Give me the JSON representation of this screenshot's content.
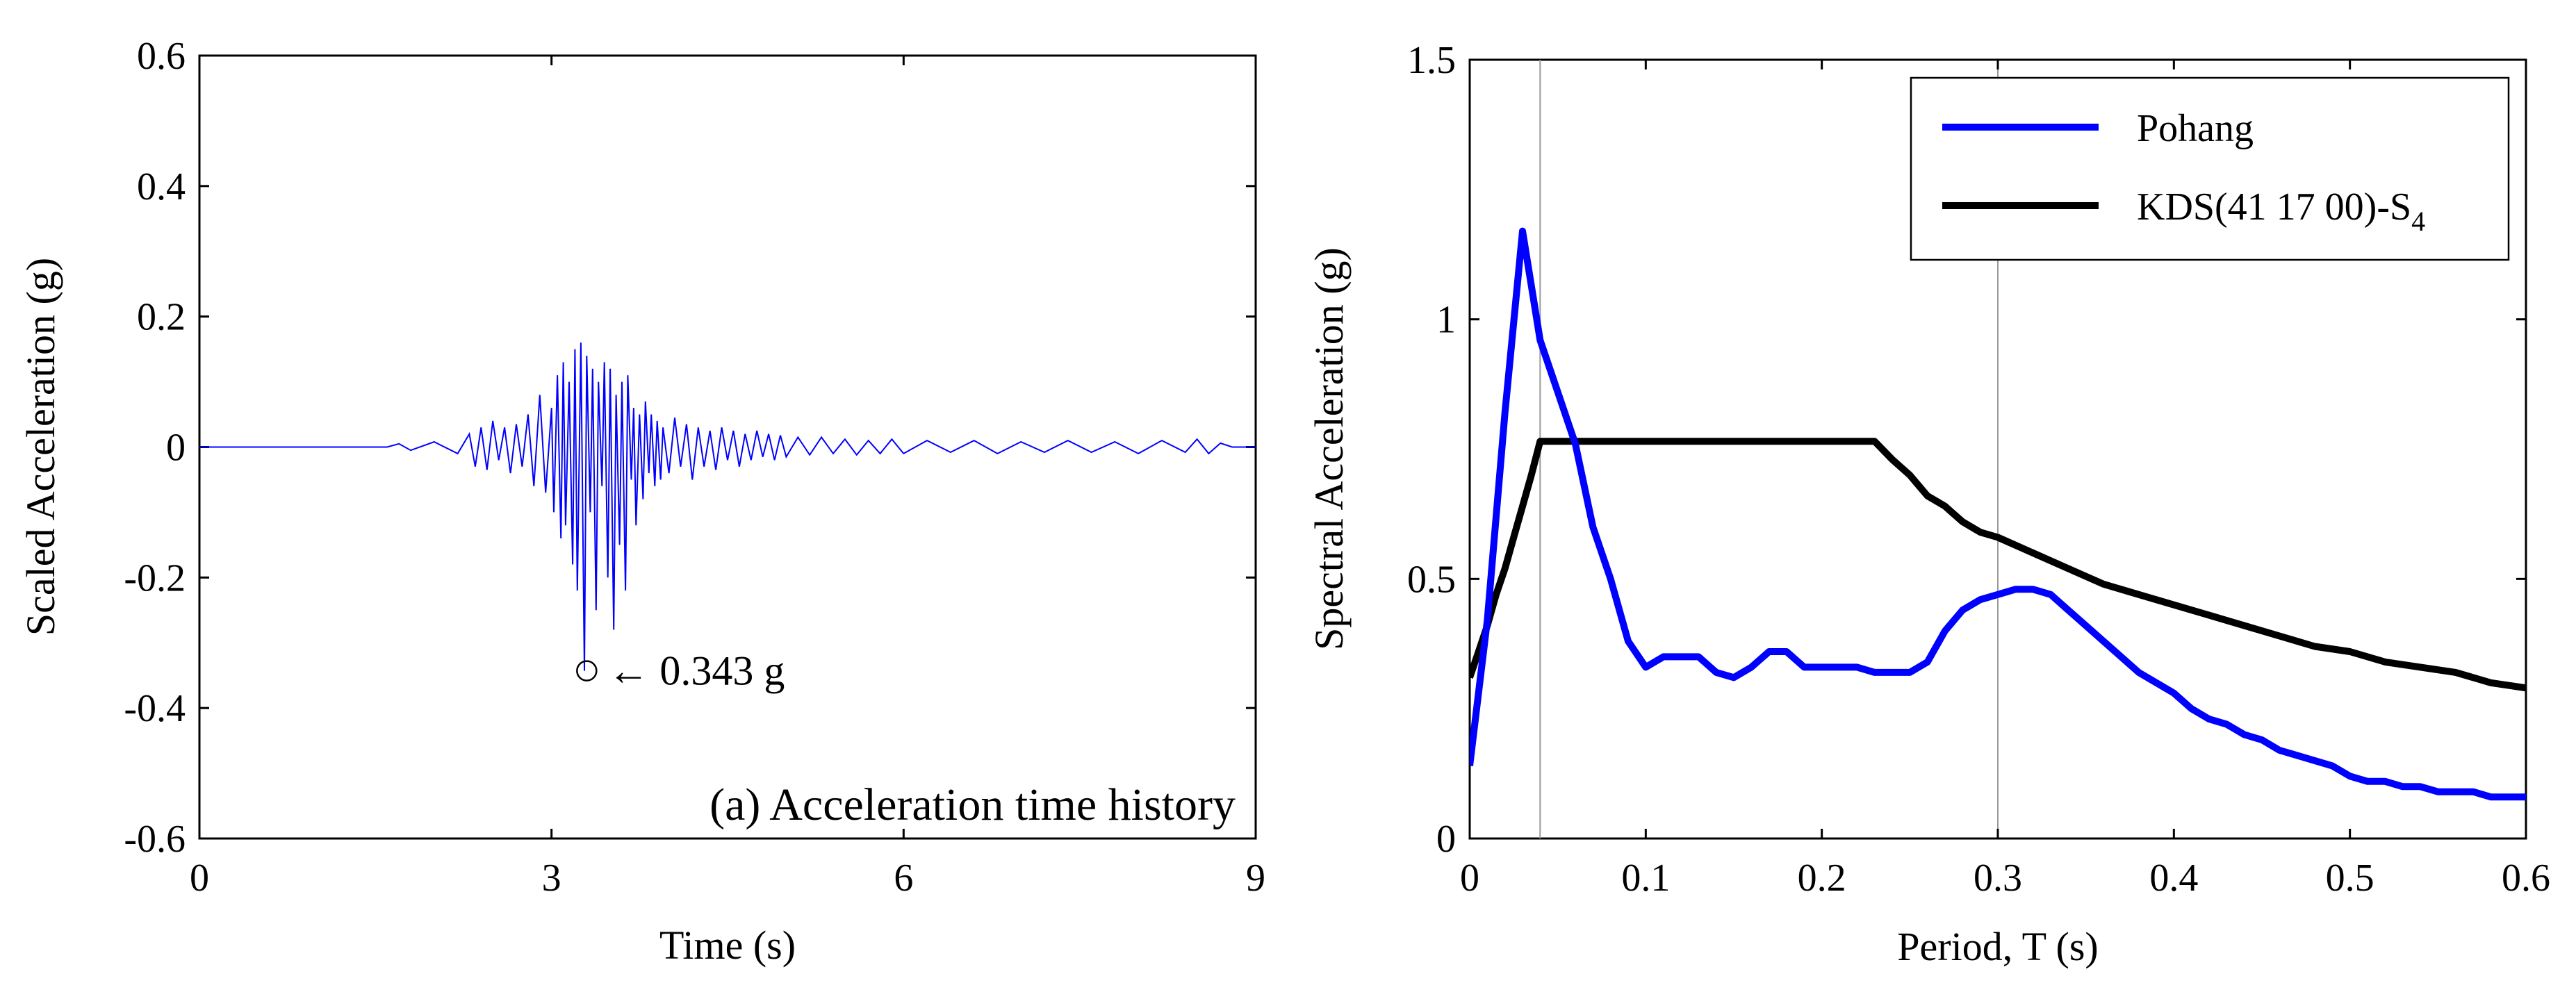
{
  "colors": {
    "pohang": "#0000ff",
    "kds": "#000000",
    "axis": "#000000",
    "ref_line": "#999999"
  },
  "chart_data": [
    {
      "type": "line",
      "title": "",
      "xlabel": "Time (s)",
      "ylabel": "Scaled Acceleration (g)",
      "xlim": [
        0,
        9
      ],
      "ylim": [
        -0.6,
        0.6
      ],
      "xticks": [
        0,
        3,
        6,
        9
      ],
      "xtick_labels": [
        "0",
        "3",
        "6",
        "9"
      ],
      "yticks": [
        -0.6,
        -0.4,
        -0.2,
        0,
        0.2,
        0.4,
        0.6
      ],
      "ytick_labels": [
        "-0.6",
        "-0.4",
        "-0.2",
        "0",
        "0.2",
        "0.4",
        "0.6"
      ],
      "series": [
        {
          "name": "Pohang",
          "x": [
            0,
            1.6,
            1.7,
            1.8,
            2.0,
            2.2,
            2.3,
            2.35,
            2.4,
            2.45,
            2.5,
            2.55,
            2.6,
            2.65,
            2.7,
            2.75,
            2.8,
            2.85,
            2.9,
            2.95,
            3.0,
            3.02,
            3.05,
            3.08,
            3.1,
            3.12,
            3.15,
            3.18,
            3.2,
            3.22,
            3.25,
            3.28,
            3.3,
            3.33,
            3.35,
            3.38,
            3.4,
            3.43,
            3.45,
            3.48,
            3.5,
            3.53,
            3.55,
            3.58,
            3.6,
            3.63,
            3.65,
            3.68,
            3.7,
            3.72,
            3.75,
            3.78,
            3.8,
            3.83,
            3.85,
            3.88,
            3.9,
            3.93,
            3.95,
            4.0,
            4.05,
            4.1,
            4.15,
            4.2,
            4.25,
            4.3,
            4.35,
            4.4,
            4.45,
            4.5,
            4.55,
            4.6,
            4.65,
            4.7,
            4.75,
            4.8,
            4.85,
            4.9,
            4.95,
            5.0,
            5.1,
            5.2,
            5.3,
            5.4,
            5.5,
            5.6,
            5.7,
            5.8,
            5.9,
            6.0,
            6.2,
            6.4,
            6.6,
            6.8,
            7.0,
            7.2,
            7.4,
            7.6,
            7.8,
            8.0,
            8.2,
            8.4,
            8.5,
            8.6,
            8.7,
            8.8,
            9.0
          ],
          "values": [
            0,
            0,
            0.005,
            -0.005,
            0.008,
            -0.01,
            0.02,
            -0.03,
            0.03,
            -0.035,
            0.04,
            -0.02,
            0.03,
            -0.04,
            0.035,
            -0.03,
            0.05,
            -0.06,
            0.08,
            -0.07,
            0.06,
            -0.1,
            0.11,
            -0.14,
            0.13,
            -0.12,
            0.1,
            -0.18,
            0.15,
            -0.22,
            0.16,
            -0.343,
            0.14,
            -0.1,
            0.12,
            -0.25,
            0.1,
            -0.06,
            0.13,
            -0.2,
            0.12,
            -0.28,
            0.08,
            -0.15,
            0.1,
            -0.22,
            0.11,
            -0.05,
            0.06,
            -0.12,
            0.05,
            -0.08,
            0.07,
            -0.04,
            0.05,
            -0.06,
            0.04,
            -0.05,
            0.03,
            -0.04,
            0.045,
            -0.03,
            0.035,
            -0.05,
            0.03,
            -0.03,
            0.025,
            -0.035,
            0.03,
            -0.02,
            0.025,
            -0.03,
            0.02,
            -0.02,
            0.025,
            -0.015,
            0.02,
            -0.02,
            0.018,
            -0.015,
            0.015,
            -0.012,
            0.015,
            -0.01,
            0.012,
            -0.012,
            0.01,
            -0.01,
            0.012,
            -0.01,
            0.01,
            -0.008,
            0.01,
            -0.01,
            0.008,
            -0.008,
            0.01,
            -0.008,
            0.008,
            -0.01,
            0.01,
            -0.008,
            0.012,
            -0.01,
            0.006,
            0,
            0
          ]
        }
      ],
      "annotations": [
        {
          "text": "← 0.343 g",
          "x": 3.3,
          "y": -0.343
        },
        {
          "text": "(a) Acceleration time history"
        }
      ]
    },
    {
      "type": "line",
      "title": "",
      "xlabel": "Period, T (s)",
      "ylabel": "Spectral Acceleration (g)",
      "xlim": [
        0,
        0.6
      ],
      "ylim": [
        0,
        1.5
      ],
      "xticks": [
        0,
        0.1,
        0.2,
        0.3,
        0.4,
        0.5,
        0.6
      ],
      "xtick_labels": [
        "0",
        "0.1",
        "0.2",
        "0.3",
        "0.4",
        "0.5",
        "0.6"
      ],
      "yticks": [
        0,
        0.5,
        1,
        1.5
      ],
      "ytick_labels": [
        "0",
        "0.5",
        "1",
        "1.5"
      ],
      "reference_lines_x": [
        0.04,
        0.3
      ],
      "legend": {
        "placement": "top-right"
      },
      "series": [
        {
          "name": "Pohang",
          "legend_label": "Pohang",
          "x": [
            0,
            0.01,
            0.02,
            0.03,
            0.04,
            0.05,
            0.06,
            0.07,
            0.08,
            0.09,
            0.1,
            0.11,
            0.12,
            0.13,
            0.14,
            0.15,
            0.16,
            0.17,
            0.18,
            0.19,
            0.2,
            0.21,
            0.22,
            0.23,
            0.24,
            0.25,
            0.26,
            0.27,
            0.28,
            0.29,
            0.3,
            0.31,
            0.32,
            0.33,
            0.34,
            0.35,
            0.36,
            0.37,
            0.38,
            0.39,
            0.4,
            0.41,
            0.42,
            0.43,
            0.44,
            0.45,
            0.46,
            0.47,
            0.48,
            0.49,
            0.5,
            0.51,
            0.52,
            0.53,
            0.54,
            0.55,
            0.56,
            0.57,
            0.58,
            0.59,
            0.6
          ],
          "values": [
            0.14,
            0.42,
            0.82,
            1.17,
            0.96,
            0.86,
            0.76,
            0.6,
            0.5,
            0.38,
            0.33,
            0.35,
            0.35,
            0.35,
            0.32,
            0.31,
            0.33,
            0.36,
            0.36,
            0.33,
            0.33,
            0.33,
            0.33,
            0.32,
            0.32,
            0.32,
            0.34,
            0.4,
            0.44,
            0.46,
            0.47,
            0.48,
            0.48,
            0.47,
            0.44,
            0.41,
            0.38,
            0.35,
            0.32,
            0.3,
            0.28,
            0.25,
            0.23,
            0.22,
            0.2,
            0.19,
            0.17,
            0.16,
            0.15,
            0.14,
            0.12,
            0.11,
            0.11,
            0.1,
            0.1,
            0.09,
            0.09,
            0.09,
            0.08,
            0.08,
            0.08
          ]
        },
        {
          "name": "KDS",
          "legend_label": "KDS(41 17 00)-S",
          "legend_subscript": "4",
          "x": [
            0,
            0.005,
            0.01,
            0.015,
            0.02,
            0.025,
            0.03,
            0.035,
            0.04,
            0.1,
            0.15,
            0.2,
            0.23,
            0.24,
            0.25,
            0.26,
            0.27,
            0.28,
            0.29,
            0.3,
            0.32,
            0.34,
            0.36,
            0.38,
            0.4,
            0.42,
            0.44,
            0.46,
            0.48,
            0.5,
            0.52,
            0.54,
            0.56,
            0.58,
            0.6
          ],
          "values": [
            0.31,
            0.36,
            0.41,
            0.47,
            0.52,
            0.58,
            0.64,
            0.7,
            0.765,
            0.765,
            0.765,
            0.765,
            0.765,
            0.73,
            0.7,
            0.66,
            0.64,
            0.61,
            0.59,
            0.58,
            0.55,
            0.52,
            0.49,
            0.47,
            0.45,
            0.43,
            0.41,
            0.39,
            0.37,
            0.36,
            0.34,
            0.33,
            0.32,
            0.3,
            0.29
          ]
        }
      ]
    }
  ]
}
